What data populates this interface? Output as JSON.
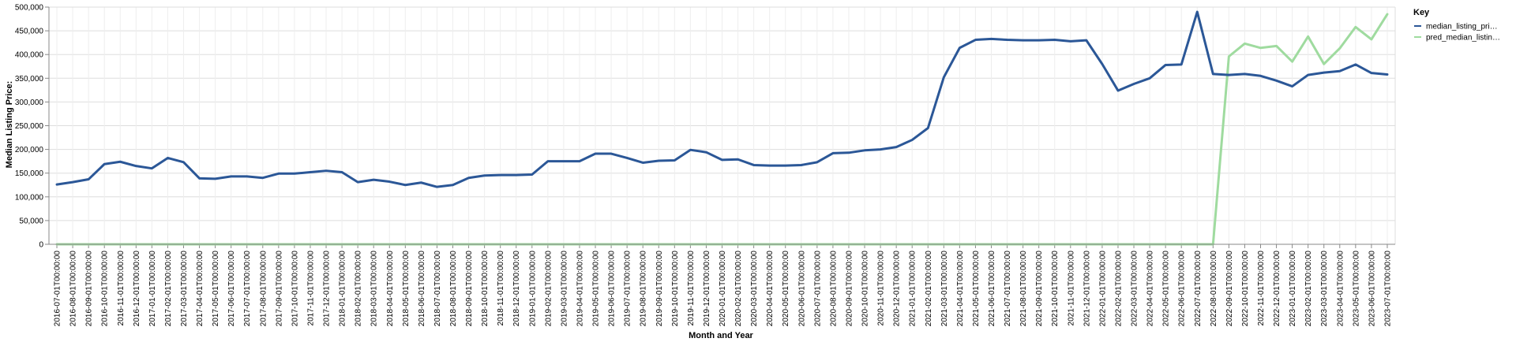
{
  "chart_data": {
    "type": "line",
    "xlabel": "Month and Year",
    "ylabel": "Median Listing Price:",
    "ylim": [
      0,
      500000
    ],
    "y_ticks": [
      "0",
      "50,000",
      "100,000",
      "150,000",
      "200,000",
      "250,000",
      "300,000",
      "350,000",
      "400,000",
      "450,000",
      "500,000"
    ],
    "grid": true,
    "legend": {
      "title": "Key",
      "placement": "top-right",
      "entries": [
        {
          "label": "median_listing_pri…",
          "color": "#2b5797"
        },
        {
          "label": "pred_median_listin…",
          "color": "#9fdb9f"
        }
      ]
    },
    "x": [
      "2016-07-01T00:00:00",
      "2016-08-01T00:00:00",
      "2016-09-01T00:00:00",
      "2016-10-01T00:00:00",
      "2016-11-01T00:00:00",
      "2016-12-01T00:00:00",
      "2017-01-01T00:00:00",
      "2017-02-01T00:00:00",
      "2017-03-01T00:00:00",
      "2017-04-01T00:00:00",
      "2017-05-01T00:00:00",
      "2017-06-01T00:00:00",
      "2017-07-01T00:00:00",
      "2017-08-01T00:00:00",
      "2017-09-01T00:00:00",
      "2017-10-01T00:00:00",
      "2017-11-01T00:00:00",
      "2017-12-01T00:00:00",
      "2018-01-01T00:00:00",
      "2018-02-01T00:00:00",
      "2018-03-01T00:00:00",
      "2018-04-01T00:00:00",
      "2018-05-01T00:00:00",
      "2018-06-01T00:00:00",
      "2018-07-01T00:00:00",
      "2018-08-01T00:00:00",
      "2018-09-01T00:00:00",
      "2018-10-01T00:00:00",
      "2018-11-01T00:00:00",
      "2018-12-01T00:00:00",
      "2019-01-01T00:00:00",
      "2019-02-01T00:00:00",
      "2019-03-01T00:00:00",
      "2019-04-01T00:00:00",
      "2019-05-01T00:00:00",
      "2019-06-01T00:00:00",
      "2019-07-01T00:00:00",
      "2019-08-01T00:00:00",
      "2019-09-01T00:00:00",
      "2019-10-01T00:00:00",
      "2019-11-01T00:00:00",
      "2019-12-01T00:00:00",
      "2020-01-01T00:00:00",
      "2020-02-01T00:00:00",
      "2020-03-01T00:00:00",
      "2020-04-01T00:00:00",
      "2020-05-01T00:00:00",
      "2020-06-01T00:00:00",
      "2020-07-01T00:00:00",
      "2020-08-01T00:00:00",
      "2020-09-01T00:00:00",
      "2020-10-01T00:00:00",
      "2020-11-01T00:00:00",
      "2020-12-01T00:00:00",
      "2021-01-01T00:00:00",
      "2021-02-01T00:00:00",
      "2021-03-01T00:00:00",
      "2021-04-01T00:00:00",
      "2021-05-01T00:00:00",
      "2021-06-01T00:00:00",
      "2021-07-01T00:00:00",
      "2021-08-01T00:00:00",
      "2021-09-01T00:00:00",
      "2021-10-01T00:00:00",
      "2021-11-01T00:00:00",
      "2021-12-01T00:00:00",
      "2022-01-01T00:00:00",
      "2022-02-01T00:00:00",
      "2022-03-01T00:00:00",
      "2022-04-01T00:00:00",
      "2022-05-01T00:00:00",
      "2022-06-01T00:00:00",
      "2022-07-01T00:00:00",
      "2022-08-01T00:00:00",
      "2022-09-01T00:00:00",
      "2022-10-01T00:00:00",
      "2022-11-01T00:00:00",
      "2022-12-01T00:00:00",
      "2023-01-01T00:00:00",
      "2023-02-01T00:00:00",
      "2023-03-01T00:00:00",
      "2023-04-01T00:00:00",
      "2023-05-01T00:00:00",
      "2023-06-01T00:00:00",
      "2023-07-01T00:00:00"
    ],
    "x_tick_labels": [
      "2016-07-01T00:00:00",
      "2016-08-01T00:00:00",
      "2016-09-01T00:00:00",
      "2016-10-01T00:00:00",
      "2016-11-01T00:00:00",
      "2016-12-01T00:00:00",
      "2017-01-01T00:00:00",
      "2017-02-01T00:00:00",
      "2017-03-01T00:00:00",
      "2017-04-01T00:00:00",
      "2017-05-01T00:00:00",
      "2017-06-01T00:00:00",
      "2017-07-01T00:00:00",
      "2017-08-01T00:00:00",
      "2017-09-01T00:00:00",
      "2017-10-01T00:00:00",
      "2017-11-01T00:00:00",
      "2017-12-01T00:00:00",
      "2018-01-01T00:00:00",
      "2018-02-01T00:00:00",
      "2018-03-01T00:00:00",
      "2018-04-01T00:00:00",
      "2018-05-01T00:00:00",
      "2018-06-01T00:00:00",
      "2018-07-01T00:00:00",
      "2018-08-01T00:00:00",
      "2018-09-01T00:00:00",
      "2018-10-01T00:00:00",
      "2018-11-01T00:00:00",
      "2018-12-01T00:00:00",
      "2019-01-01T00:00:00",
      "2019-02-01T00:00:00",
      "2019-03-01T00:00:00",
      "2019-04-01T00:00:00",
      "2019-05-01T00:00:00",
      "2019-06-01T00:00:00",
      "2019-07-01T00:00:00",
      "2019-08-01T00:00:00",
      "2019-09-01T00:00:00",
      "2019-10-01T00:00:00",
      "2019-11-01T00:00:00",
      "2019-12-01T00:00:00",
      "2020-01-01T00:00:00",
      "2020-02-01T00:00:00",
      "2020-03-01T00:00:00",
      "2020-04-01T00:00:00",
      "2020-05-01T00:00:00",
      "2020-06-01T00:00:00",
      "2020-07-01T00:00:00",
      "2020-08-01T00:00:00",
      "2020-09-01T00:00:00",
      "2020-10-01T00:00:00",
      "2020-11-01T00:00:00",
      "2020-12-01T00:00:00",
      "2021-01-01T00:00:00",
      "2021-02-01T00:00:00",
      "2021-03-01T00:00:00",
      "2021-04-01T00:00:00",
      "2021-05-01T00:00:00",
      "2021-06-01T00:00:00",
      "2021-07-01T00:00:00",
      "2021-08-01T00:00:00",
      "2021-09-01T00:00:00",
      "2021-10-01T00:00:00",
      "2021-11-01T00:00:00",
      "2021-12-01T00:00:00",
      "2022-01-01T00:00:00",
      "2022-02-01T00:00:00",
      "2022-03-01T00:00:00",
      "2022-04-01T00:00:00",
      "2022-05-01T00:00:00",
      "2022-06-01T00:00:00",
      "2022-07-01T00:00:00",
      "2022-08-01T00:00:00",
      "2022-09-01T00:00:00",
      "2022-10-01T00:00:00",
      "2022-11-01T00:00:00",
      "2022-12-01T00:00:00",
      "2023-01-01T00:00:00",
      "2023-02-01T00:00:00",
      "2023-03-01T00:00:00",
      "2023-04-01T00:00:00",
      "2023-05-01T00:00:00",
      "2023-06-01T00:00:00",
      "2023-07-01T00:00:00"
    ],
    "series": [
      {
        "name": "median_listing_pri…",
        "color": "#2b5797",
        "values": [
          126000,
          131000,
          137000,
          169000,
          174000,
          165000,
          160000,
          182000,
          173000,
          139000,
          138000,
          143000,
          143000,
          140000,
          149000,
          149000,
          152000,
          155000,
          152000,
          131000,
          136000,
          132000,
          125000,
          130000,
          121000,
          125000,
          140000,
          145000,
          146000,
          146000,
          147000,
          175000,
          175000,
          175000,
          191000,
          191000,
          182000,
          172000,
          176000,
          177000,
          199000,
          194000,
          178000,
          179000,
          167000,
          166000,
          166000,
          167000,
          173000,
          192000,
          193000,
          198000,
          200000,
          205000,
          220000,
          245000,
          352000,
          414000,
          431000,
          433000,
          431000,
          430000,
          430000,
          431000,
          428000,
          430000,
          380000,
          324000,
          338000,
          350000,
          378000,
          379000,
          490000,
          359000,
          357000,
          359000,
          355000,
          345000,
          333000,
          357000,
          362000,
          365000,
          379000,
          361000,
          358000
        ]
      },
      {
        "name": "pred_median_listin…",
        "color": "#9fdb9f",
        "values": [
          0,
          0,
          0,
          0,
          0,
          0,
          0,
          0,
          0,
          0,
          0,
          0,
          0,
          0,
          0,
          0,
          0,
          0,
          0,
          0,
          0,
          0,
          0,
          0,
          0,
          0,
          0,
          0,
          0,
          0,
          0,
          0,
          0,
          0,
          0,
          0,
          0,
          0,
          0,
          0,
          0,
          0,
          0,
          0,
          0,
          0,
          0,
          0,
          0,
          0,
          0,
          0,
          0,
          0,
          0,
          0,
          0,
          0,
          0,
          0,
          0,
          0,
          0,
          0,
          0,
          0,
          0,
          0,
          0,
          0,
          0,
          0,
          0,
          0,
          396000,
          423000,
          414000,
          418000,
          385000,
          438000,
          380000,
          413000,
          458000,
          432000,
          485000
        ]
      }
    ]
  }
}
